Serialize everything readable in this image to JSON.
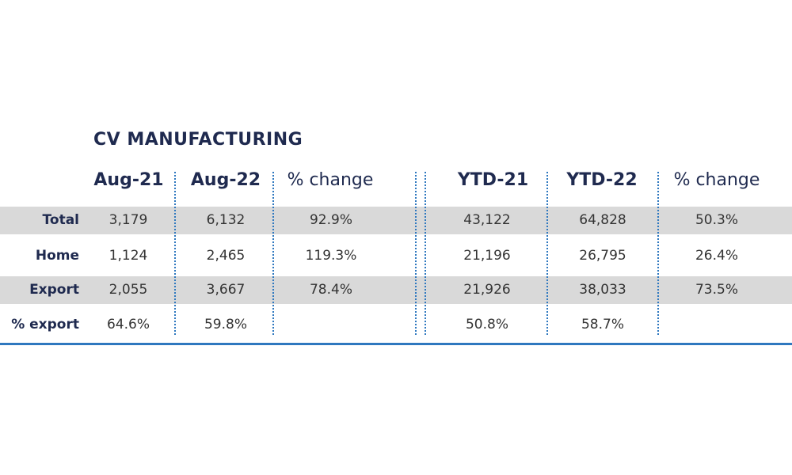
{
  "chart_data": {
    "type": "table",
    "title": "CV MANUFACTURING",
    "columns": [
      "Aug-21",
      "Aug-22",
      "% change",
      "YTD-21",
      "YTD-22",
      "% change"
    ],
    "rows": [
      {
        "label": "Total",
        "values": [
          "3,179",
          "6,132",
          "92.9%",
          "43,122",
          "64,828",
          "50.3%"
        ]
      },
      {
        "label": "Home",
        "values": [
          "1,124",
          "2,465",
          "119.3%",
          "21,196",
          "26,795",
          "26.4%"
        ]
      },
      {
        "label": "Export",
        "values": [
          "2,055",
          "3,667",
          "78.4%",
          "21,926",
          "38,033",
          "73.5%"
        ]
      },
      {
        "label": "% export",
        "values": [
          "64.6%",
          "59.8%",
          "",
          "50.8%",
          "58.7%",
          ""
        ]
      }
    ],
    "shaded_rows": [
      "Total",
      "Export"
    ],
    "colors": {
      "title": "#1f2a4f",
      "band": "#d9d9d9",
      "divider": "#2f78bf",
      "rule": "#2f78bf"
    }
  }
}
